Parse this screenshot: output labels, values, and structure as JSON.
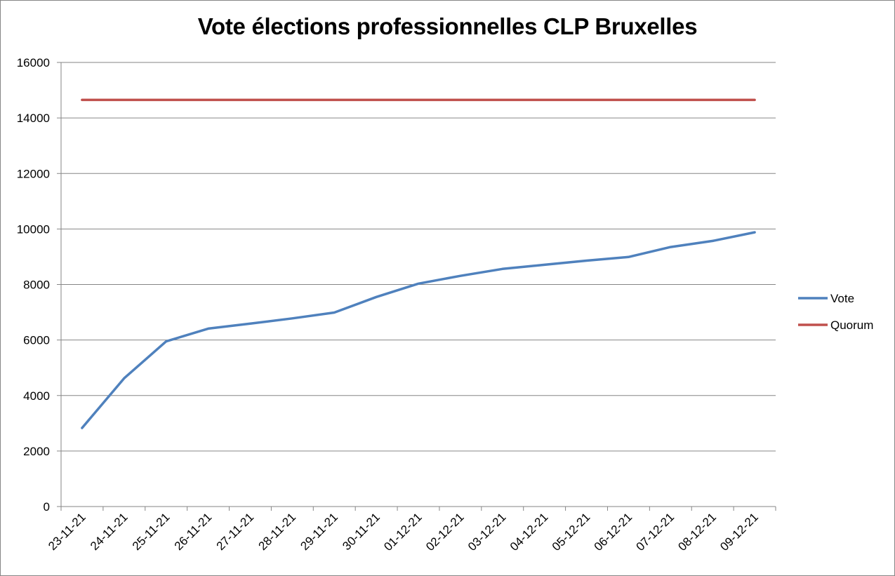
{
  "chart_data": {
    "type": "line",
    "title": "Vote élections professionnelles CLP Bruxelles",
    "xlabel": "",
    "ylabel": "",
    "categories": [
      "23-11-21",
      "24-11-21",
      "25-11-21",
      "26-11-21",
      "27-11-21",
      "28-11-21",
      "29-11-21",
      "30-11-21",
      "01-12-21",
      "02-12-21",
      "03-12-21",
      "04-12-21",
      "05-12-21",
      "06-12-21",
      "07-12-21",
      "08-12-21",
      "09-12-21"
    ],
    "y_ticks": [
      "0",
      "2000",
      "4000",
      "6000",
      "8000",
      "10000",
      "12000",
      "14000",
      "16000"
    ],
    "ylim": [
      0,
      16000
    ],
    "grid": true,
    "legend_position": "right",
    "series": [
      {
        "name": "Vote",
        "color": "#4f81bd",
        "values": [
          2830,
          4620,
          5950,
          6410,
          6590,
          6780,
          6990,
          7550,
          8030,
          8310,
          8560,
          8710,
          8860,
          8990,
          9350,
          9570,
          9880
        ]
      },
      {
        "name": "Quorum",
        "color": "#c0504d",
        "values": [
          14650,
          14650,
          14650,
          14650,
          14650,
          14650,
          14650,
          14650,
          14650,
          14650,
          14650,
          14650,
          14650,
          14650,
          14650,
          14650,
          14650
        ]
      }
    ]
  }
}
